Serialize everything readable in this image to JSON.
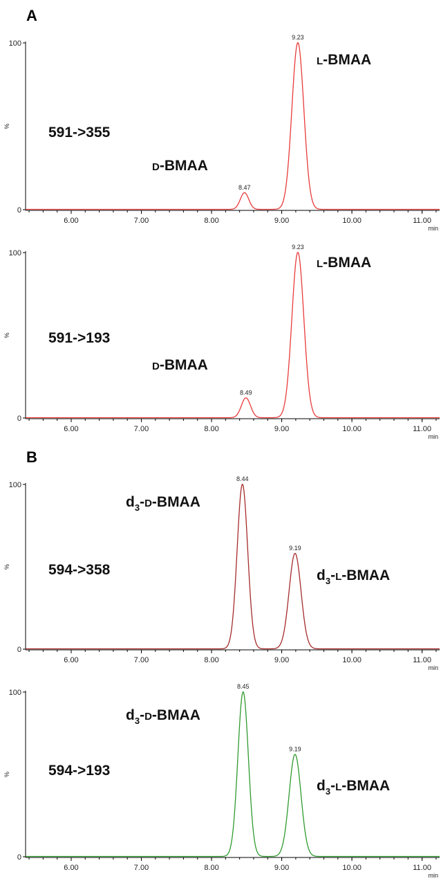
{
  "panels": {
    "A": "A",
    "B": "B"
  },
  "chart_data": [
    {
      "type": "line",
      "panel": "A",
      "transition": "591->355",
      "color": "#e83a3a",
      "xlim": [
        5.35,
        11.25
      ],
      "ylim": [
        0,
        100
      ],
      "x_ticks": [
        "6.00",
        "7.00",
        "8.00",
        "9.00",
        "10.00",
        "11.00"
      ],
      "x_unit": "min",
      "y_ticks": [
        "100",
        "0"
      ],
      "ylabel": "%",
      "peaks": [
        {
          "rt": 8.47,
          "rt_label": "8.47",
          "height": 10,
          "width": 0.06
        },
        {
          "rt": 9.23,
          "rt_label": "9.23",
          "height": 100,
          "width": 0.085
        }
      ],
      "compounds": [
        {
          "prefix": "",
          "sub": "",
          "sc": "D",
          "suffix": "-BMAA"
        },
        {
          "prefix": "",
          "sub": "",
          "sc": "L",
          "suffix": "-BMAA"
        }
      ]
    },
    {
      "type": "line",
      "panel": "A",
      "transition": "591->193",
      "color": "#e83a3a",
      "xlim": [
        5.35,
        11.25
      ],
      "ylim": [
        0,
        100
      ],
      "x_ticks": [
        "6.00",
        "7.00",
        "8.00",
        "9.00",
        "10.00",
        "11.00"
      ],
      "x_unit": "min",
      "y_ticks": [
        "100",
        "0"
      ],
      "ylabel": "%",
      "peaks": [
        {
          "rt": 8.49,
          "rt_label": "8.49",
          "height": 12,
          "width": 0.065
        },
        {
          "rt": 9.23,
          "rt_label": "9.23",
          "height": 100,
          "width": 0.085
        }
      ],
      "compounds": [
        {
          "prefix": "",
          "sub": "",
          "sc": "D",
          "suffix": "-BMAA"
        },
        {
          "prefix": "",
          "sub": "",
          "sc": "L",
          "suffix": "-BMAA"
        }
      ]
    },
    {
      "type": "line",
      "panel": "B",
      "transition": "594->358",
      "color": "#a52a2a",
      "xlim": [
        5.35,
        11.25
      ],
      "ylim": [
        0,
        100
      ],
      "x_ticks": [
        "6.00",
        "7.00",
        "8.00",
        "9.00",
        "10.00",
        "11.00"
      ],
      "x_unit": "min",
      "y_ticks": [
        "100",
        "0"
      ],
      "ylabel": "%",
      "peaks": [
        {
          "rt": 8.44,
          "rt_label": "8.44",
          "height": 100,
          "width": 0.075
        },
        {
          "rt": 9.19,
          "rt_label": "9.19",
          "height": 58,
          "width": 0.085
        }
      ],
      "compounds": [
        {
          "prefix": "d",
          "sub": "3",
          "sc": "D",
          "suffix": "-BMAA"
        },
        {
          "prefix": "d",
          "sub": "3",
          "sc": "L",
          "suffix": "-BMAA"
        }
      ]
    },
    {
      "type": "line",
      "panel": "B",
      "transition": "594->193",
      "color": "#2e9a2e",
      "xlim": [
        5.35,
        11.25
      ],
      "ylim": [
        0,
        100
      ],
      "x_ticks": [
        "6.00",
        "7.00",
        "8.00",
        "9.00",
        "10.00",
        "11.00"
      ],
      "x_unit": "min",
      "y_ticks": [
        "100",
        "0"
      ],
      "ylabel": "%",
      "peaks": [
        {
          "rt": 8.45,
          "rt_label": "8.45",
          "height": 100,
          "width": 0.075
        },
        {
          "rt": 9.19,
          "rt_label": "9.19",
          "height": 62,
          "width": 0.085
        }
      ],
      "compounds": [
        {
          "prefix": "d",
          "sub": "3",
          "sc": "D",
          "suffix": "-BMAA"
        },
        {
          "prefix": "d",
          "sub": "3",
          "sc": "L",
          "suffix": "-BMAA"
        }
      ]
    }
  ]
}
